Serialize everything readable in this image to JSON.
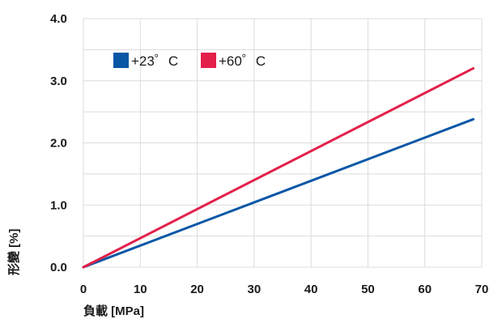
{
  "chart_data": {
    "type": "line",
    "xlabel": "負載 [MPa]",
    "ylabel": "形變 [%]",
    "xlim": [
      0,
      70
    ],
    "ylim": [
      0,
      4.0
    ],
    "x_ticks": [
      "0",
      "10",
      "20",
      "30",
      "40",
      "50",
      "60",
      "70"
    ],
    "y_ticks": [
      "0.0",
      "1.0",
      "2.0",
      "3.0",
      "4.0"
    ],
    "grid": true,
    "legend_position": "top-left",
    "series": [
      {
        "name": "+23゜C",
        "color": "#0a57a6",
        "x": [
          0,
          68.5
        ],
        "y": [
          0,
          2.38
        ]
      },
      {
        "name": "+60゜C",
        "color": "#e3204a",
        "x": [
          0,
          68.5
        ],
        "y": [
          0,
          3.2
        ]
      }
    ]
  }
}
